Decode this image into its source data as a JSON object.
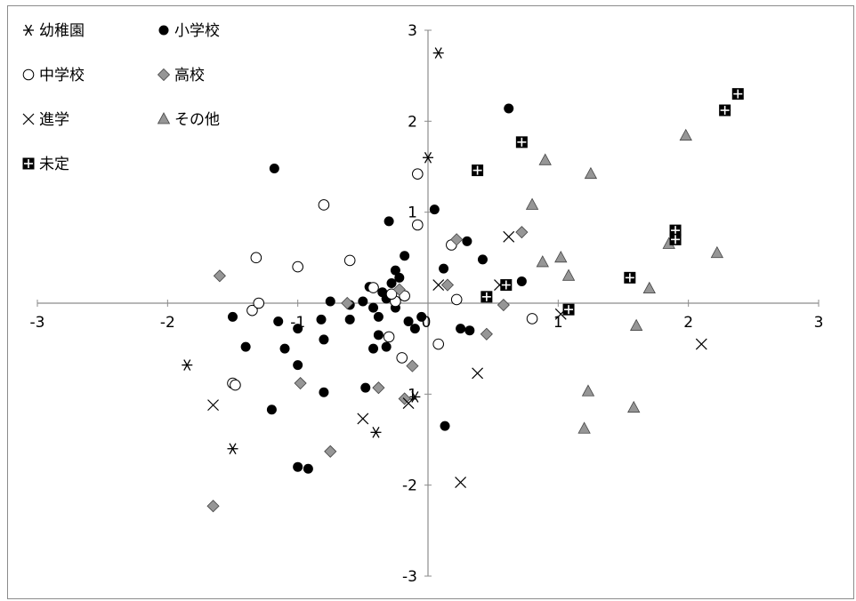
{
  "chart_data": {
    "type": "scatter",
    "title": "",
    "xlabel": "",
    "ylabel": "",
    "xlim": [
      -3,
      3
    ],
    "ylim": [
      -3,
      3
    ],
    "x_ticks": [
      "-3",
      "-2",
      "-1",
      "0",
      "1",
      "2",
      "3"
    ],
    "y_ticks": [
      "-3",
      "-2",
      "-1",
      "1",
      "2",
      "3"
    ],
    "grid": false,
    "legend_position": "top-left",
    "series": [
      {
        "name": "幼稚園",
        "marker": "asterisk",
        "color": "#000000",
        "points": [
          [
            0.08,
            2.75
          ],
          [
            0.0,
            1.6
          ],
          [
            -1.85,
            -0.68
          ],
          [
            -1.5,
            -1.6
          ],
          [
            -0.1,
            -1.03
          ],
          [
            -0.4,
            -1.42
          ]
        ]
      },
      {
        "name": "小学校",
        "marker": "filled-circle",
        "color": "#000000",
        "points": [
          [
            -1.18,
            1.48
          ],
          [
            0.62,
            2.14
          ],
          [
            0.05,
            1.03
          ],
          [
            -0.3,
            0.9
          ],
          [
            0.3,
            0.68
          ],
          [
            0.42,
            0.48
          ],
          [
            0.12,
            0.38
          ],
          [
            -0.25,
            0.36
          ],
          [
            -0.18,
            0.52
          ],
          [
            -0.22,
            0.28
          ],
          [
            -0.28,
            0.22
          ],
          [
            -0.45,
            0.18
          ],
          [
            -0.35,
            0.12
          ],
          [
            -0.32,
            0.05
          ],
          [
            -0.42,
            -0.05
          ],
          [
            -0.5,
            0.02
          ],
          [
            -0.6,
            -0.02
          ],
          [
            -0.75,
            0.02
          ],
          [
            -0.82,
            -0.18
          ],
          [
            -0.6,
            -0.18
          ],
          [
            -0.38,
            -0.15
          ],
          [
            -0.25,
            -0.05
          ],
          [
            -0.15,
            -0.2
          ],
          [
            -0.05,
            -0.15
          ],
          [
            -0.1,
            -0.28
          ],
          [
            0.25,
            -0.28
          ],
          [
            0.32,
            -0.3
          ],
          [
            -1.5,
            -0.15
          ],
          [
            -1.15,
            -0.2
          ],
          [
            -1.0,
            -0.28
          ],
          [
            -1.4,
            -0.48
          ],
          [
            -1.1,
            -0.5
          ],
          [
            -1.0,
            -0.68
          ],
          [
            -0.38,
            -0.35
          ],
          [
            -0.32,
            -0.48
          ],
          [
            -0.42,
            -0.5
          ],
          [
            -0.8,
            -0.4
          ],
          [
            -0.8,
            -0.98
          ],
          [
            -0.48,
            -0.93
          ],
          [
            -1.2,
            -1.17
          ],
          [
            -1.0,
            -1.8
          ],
          [
            -0.92,
            -1.82
          ],
          [
            0.13,
            -1.35
          ],
          [
            0.72,
            0.24
          ]
        ]
      },
      {
        "name": "中学校",
        "marker": "open-circle",
        "color": "#ffffff",
        "points": [
          [
            -0.08,
            1.42
          ],
          [
            -0.8,
            1.08
          ],
          [
            -0.08,
            0.86
          ],
          [
            0.18,
            0.64
          ],
          [
            -1.32,
            0.5
          ],
          [
            -1.0,
            0.4
          ],
          [
            -0.6,
            0.47
          ],
          [
            -0.42,
            0.17
          ],
          [
            -0.25,
            0.02
          ],
          [
            -1.35,
            -0.08
          ],
          [
            -1.3,
            0.0
          ],
          [
            -1.5,
            -0.88
          ],
          [
            -1.48,
            -0.9
          ],
          [
            0.08,
            -0.45
          ],
          [
            0.8,
            -0.17
          ],
          [
            0.22,
            0.04
          ],
          [
            -0.18,
            0.08
          ],
          [
            -0.28,
            0.1
          ],
          [
            -0.2,
            -0.6
          ],
          [
            -0.3,
            -0.37
          ]
        ]
      },
      {
        "name": "高校",
        "marker": "diamond",
        "color": "#969696",
        "points": [
          [
            -1.6,
            0.3
          ],
          [
            0.22,
            0.7
          ],
          [
            0.72,
            0.78
          ],
          [
            0.15,
            0.2
          ],
          [
            -0.22,
            0.15
          ],
          [
            -0.62,
            0.0
          ],
          [
            0.58,
            -0.02
          ],
          [
            0.45,
            -0.34
          ],
          [
            -0.12,
            -0.69
          ],
          [
            -0.38,
            -0.93
          ],
          [
            -0.98,
            -0.88
          ],
          [
            -0.18,
            -1.05
          ],
          [
            -0.75,
            -1.63
          ],
          [
            -1.65,
            -2.23
          ]
        ]
      },
      {
        "name": "進学",
        "marker": "x",
        "color": "#000000",
        "points": [
          [
            0.62,
            0.73
          ],
          [
            0.08,
            0.2
          ],
          [
            0.55,
            0.2
          ],
          [
            1.02,
            -0.12
          ],
          [
            2.1,
            -0.45
          ],
          [
            0.38,
            -0.77
          ],
          [
            -0.5,
            -1.27
          ],
          [
            -0.15,
            -1.1
          ],
          [
            -1.65,
            -1.12
          ],
          [
            0.25,
            -1.97
          ]
        ]
      },
      {
        "name": "その他",
        "marker": "triangle",
        "color": "#969696",
        "points": [
          [
            1.98,
            1.84
          ],
          [
            0.9,
            1.57
          ],
          [
            1.25,
            1.42
          ],
          [
            0.8,
            1.08
          ],
          [
            1.85,
            0.65
          ],
          [
            2.22,
            0.55
          ],
          [
            0.88,
            0.45
          ],
          [
            1.02,
            0.5
          ],
          [
            1.08,
            0.3
          ],
          [
            1.7,
            0.16
          ],
          [
            1.6,
            -0.25
          ],
          [
            1.23,
            -0.97
          ],
          [
            1.58,
            -1.15
          ],
          [
            1.2,
            -1.38
          ]
        ]
      },
      {
        "name": "未定",
        "marker": "crossed-square",
        "color": "#000000",
        "points": [
          [
            2.38,
            2.3
          ],
          [
            2.28,
            2.12
          ],
          [
            0.72,
            1.77
          ],
          [
            0.38,
            1.46
          ],
          [
            1.9,
            0.8
          ],
          [
            1.9,
            0.7
          ],
          [
            1.55,
            0.28
          ],
          [
            0.6,
            0.2
          ],
          [
            0.45,
            0.07
          ],
          [
            1.08,
            -0.07
          ]
        ]
      }
    ]
  }
}
